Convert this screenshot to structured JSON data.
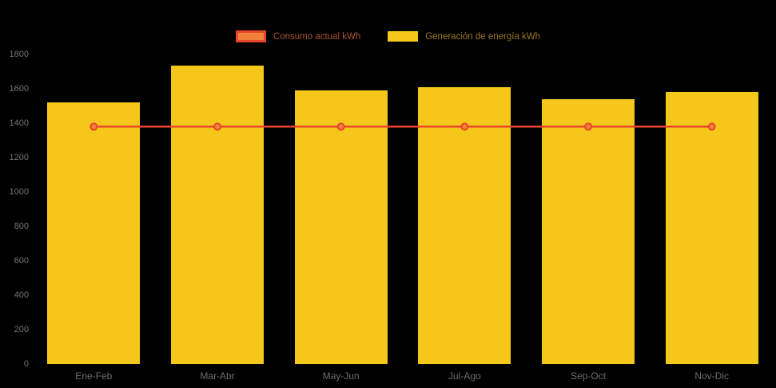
{
  "chart_data": {
    "type": "bar",
    "title": "",
    "categories": [
      "Ene-Feb",
      "Mar-Abr",
      "May-Jun",
      "Jul-Ago",
      "Sep-Oct",
      "Nov-Dic"
    ],
    "series": [
      {
        "name": "Consumo actual kWh",
        "kind": "line",
        "values": [
          1380,
          1380,
          1380,
          1380,
          1380,
          1380
        ],
        "color": "#e8452c",
        "fill": "#f0803a"
      },
      {
        "name": "Generación de energía kWh",
        "kind": "bar",
        "values": [
          1520,
          1735,
          1590,
          1610,
          1540,
          1580
        ],
        "color": "#f5c71b"
      }
    ],
    "xlabel": "",
    "ylabel": "",
    "ylim": [
      0,
      1800
    ],
    "ytick_step": 200,
    "grid": false,
    "legend_position": "top"
  },
  "legend": {
    "items": [
      {
        "label": "Consumo actual kWh"
      },
      {
        "label": "Generación de energía kWh"
      }
    ]
  },
  "colors": {
    "background": "#000000",
    "bar": "#f5c71b",
    "line": "#e8452c",
    "line_marker_fill": "#f0803a",
    "axis_text": "#6e6e6e"
  }
}
